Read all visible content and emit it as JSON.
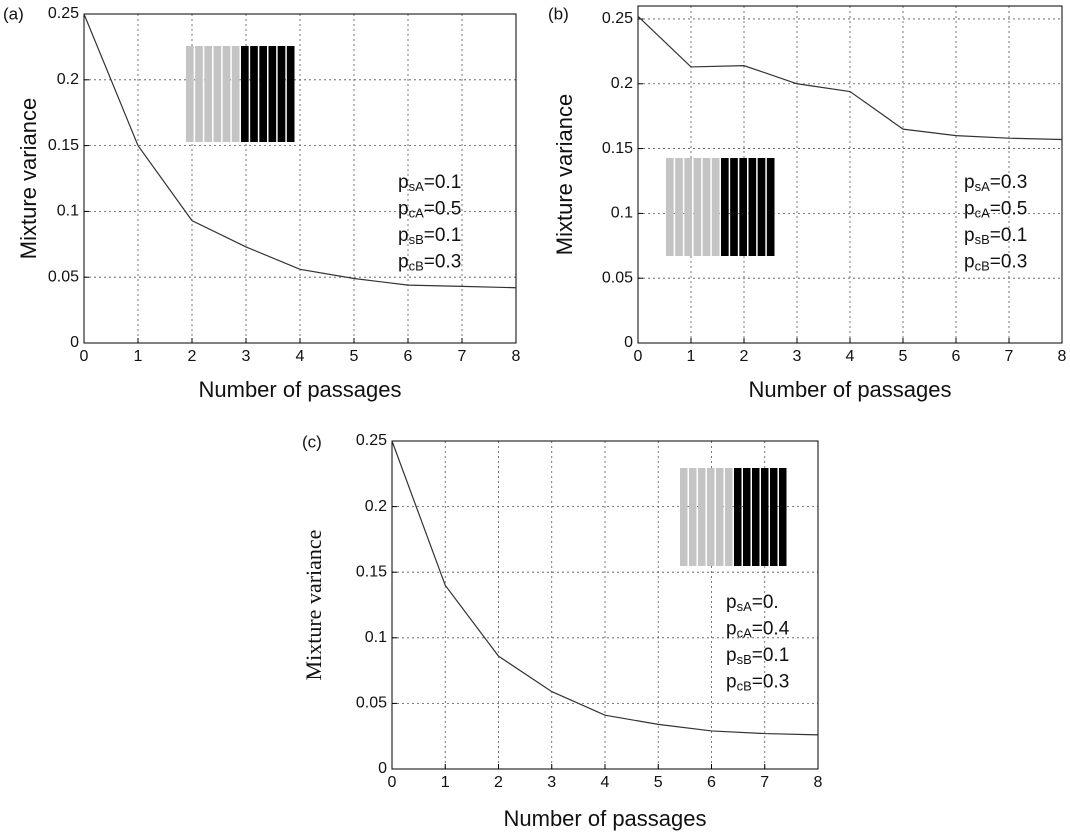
{
  "chart_data": [
    {
      "type": "line",
      "panel": "(a)",
      "x_label": "Number of passages",
      "y_label": "Mixture variance",
      "x": [
        0,
        1,
        2,
        3,
        4,
        5,
        6,
        7,
        8
      ],
      "series": [
        {
          "name": "Mixture variance",
          "color": "#333333",
          "values": [
            0.25,
            0.15,
            0.093,
            0.073,
            0.056,
            0.049,
            0.044,
            0.043,
            0.042
          ]
        }
      ],
      "xlim": [
        0,
        8
      ],
      "ylim": [
        0,
        0.25
      ],
      "xticks": [
        0,
        1,
        2,
        3,
        4,
        5,
        6,
        7,
        8
      ],
      "yticks": [
        0,
        0.05,
        0.1,
        0.15,
        0.2,
        0.25
      ],
      "grid": true,
      "annotations": [
        {
          "main": "p",
          "sub": "sA",
          "tail": "=0.1"
        },
        {
          "main": "p",
          "sub": "cA",
          "tail": "=0.5"
        },
        {
          "main": "p",
          "sub": "sB",
          "tail": "=0.1"
        },
        {
          "main": "p",
          "sub": "cB",
          "tail": "=0.3"
        }
      ]
    },
    {
      "type": "line",
      "panel": "(b)",
      "x_label": "Number of passages",
      "y_label": "Mixture variance",
      "x": [
        0,
        1,
        2,
        3,
        4,
        5,
        6,
        7,
        8
      ],
      "series": [
        {
          "name": "Mixture variance",
          "color": "#333333",
          "values": [
            0.252,
            0.213,
            0.214,
            0.2,
            0.194,
            0.165,
            0.16,
            0.158,
            0.157
          ]
        }
      ],
      "xlim": [
        0,
        8
      ],
      "ylim": [
        0,
        0.26
      ],
      "xticks": [
        0,
        1,
        2,
        3,
        4,
        5,
        6,
        7,
        8
      ],
      "yticks": [
        0,
        0.05,
        0.1,
        0.15,
        0.2,
        0.25
      ],
      "grid": true,
      "annotations": [
        {
          "main": "p",
          "sub": "sA",
          "tail": "=0.3"
        },
        {
          "main": "p",
          "sub": "cA",
          "tail": "=0.5"
        },
        {
          "main": "p",
          "sub": "sB",
          "tail": "=0.1"
        },
        {
          "main": "p",
          "sub": "cB",
          "tail": "=0.3"
        }
      ]
    },
    {
      "type": "line",
      "panel": "(c)",
      "x_label": "Number of passages",
      "y_label": "Mixture variance",
      "x": [
        0,
        1,
        2,
        3,
        4,
        5,
        6,
        7,
        8
      ],
      "series": [
        {
          "name": "Mixture variance",
          "color": "#333333",
          "values": [
            0.25,
            0.14,
            0.086,
            0.059,
            0.041,
            0.034,
            0.029,
            0.027,
            0.026
          ]
        }
      ],
      "xlim": [
        0,
        8
      ],
      "ylim": [
        0,
        0.25
      ],
      "xticks": [
        0,
        1,
        2,
        3,
        4,
        5,
        6,
        7,
        8
      ],
      "yticks": [
        0,
        0.05,
        0.1,
        0.15,
        0.2,
        0.25
      ],
      "grid": true,
      "annotations": [
        {
          "main": "p",
          "sub": "sA",
          "tail": "=0."
        },
        {
          "main": "p",
          "sub": "cA",
          "tail": "=0.4"
        },
        {
          "main": "p",
          "sub": "sB",
          "tail": "=0.1"
        },
        {
          "main": "p",
          "sub": "cB",
          "tail": "=0.3"
        }
      ]
    }
  ]
}
